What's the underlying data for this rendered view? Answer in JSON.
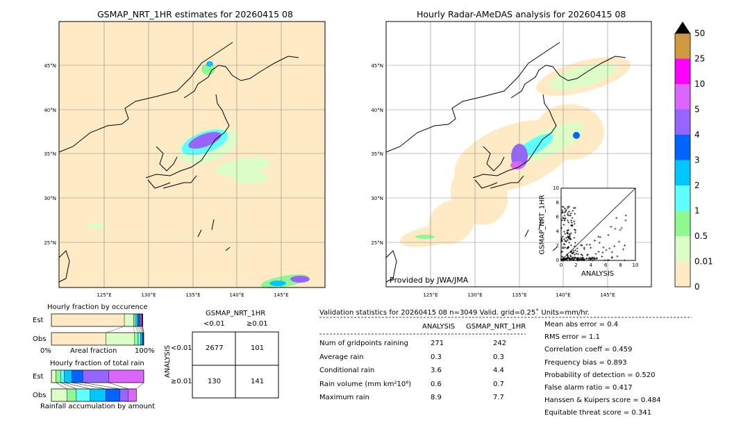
{
  "chart_data": [
    {
      "type": "map",
      "title": "GSMAP_NRT_1HR estimates for 20260415 08",
      "lon_ticks": [
        "125°E",
        "130°E",
        "135°E",
        "140°E",
        "145°E"
      ],
      "lat_ticks": [
        "45°N",
        "40°N",
        "35°N",
        "30°N",
        "25°N"
      ]
    },
    {
      "type": "map",
      "title": "Hourly Radar-AMeDAS analysis for 20260415 08",
      "lon_ticks": [
        "125°E",
        "130°E",
        "135°E",
        "140°E",
        "145°E"
      ],
      "lat_ticks": [
        "45°N",
        "40°N",
        "35°N",
        "30°N",
        "25°N"
      ],
      "credit": "Provided by JWA/JMA"
    },
    {
      "type": "scatter",
      "xlabel": "ANALYSIS",
      "ylabel": "GSMAP_NRT_1HR",
      "xlim": [
        0,
        10
      ],
      "ylim": [
        0,
        10
      ],
      "ticks": [
        "0",
        "2",
        "4",
        "6",
        "8",
        "10"
      ]
    },
    {
      "type": "colorbar",
      "labels": [
        "50",
        "25",
        "10",
        "5",
        "4",
        "3",
        "2",
        "1",
        "0.5",
        "0.01",
        "0"
      ],
      "colors": [
        "#d09a40",
        "#ff00ff",
        "#dc64ff",
        "#9664ff",
        "#0064ff",
        "#00c8ff",
        "#60ffff",
        "#90f890",
        "#dcfcc8",
        "#feeac4"
      ],
      "extend": "max"
    },
    {
      "type": "bar",
      "title": "Hourly fraction by occurence",
      "categories": [
        "Est",
        "Obs"
      ],
      "xlabel": "Areal fraction",
      "x_left": "0%",
      "x_right": "100%",
      "series": [
        {
          "fractions": [
            0.79,
            0.1,
            0.02,
            0.015,
            0.015,
            0.015,
            0.015,
            0.01,
            0.005,
            0.005
          ]
        },
        {
          "fractions": [
            0.59,
            0.31,
            0.04,
            0.025,
            0.02,
            0.01,
            0.005,
            0.0,
            0.0,
            0.0
          ]
        }
      ]
    },
    {
      "type": "bar",
      "title": "Hourly fraction of total rain",
      "categories": [
        "Est",
        "Obs"
      ],
      "xlabel": "Rainfall accumulation by amount",
      "series": [
        {
          "fractions": [
            0.05,
            0.05,
            0.04,
            0.08,
            0.12,
            0.28,
            0.38
          ]
        },
        {
          "fractions": [
            0.17,
            0.1,
            0.15,
            0.17,
            0.15,
            0.09,
            0.09
          ]
        }
      ]
    },
    {
      "type": "table",
      "title": "GSMAP_NRT_1HR",
      "col_labels": [
        "<0.01",
        "≥0.01"
      ],
      "row_axis": "ANALYSIS",
      "row_labels": [
        "<0.01",
        "≥0.01"
      ],
      "cells": [
        [
          "2677",
          "101"
        ],
        [
          "130",
          "141"
        ]
      ]
    }
  ],
  "stats": {
    "header": "Validation statistics for 20260415 08  n=3049 Valid. grid=0.25˚ Units=mm/hr.",
    "col_analysis": "ANALYSIS",
    "col_gsmap": "GSMAP_NRT_1HR",
    "rows": [
      {
        "label": "Num of gridpoints raining",
        "a": "271",
        "g": "242"
      },
      {
        "label": "Average rain",
        "a": "0.3",
        "g": "0.3"
      },
      {
        "label": "Conditional rain",
        "a": "3.6",
        "g": "4.4"
      },
      {
        "label": "Rain volume (mm km²10⁶)",
        "a": "0.6",
        "g": "0.7"
      },
      {
        "label": "Maximum rain",
        "a": "8.9",
        "g": "7.7"
      }
    ],
    "scores": [
      "Mean abs error =    0.4",
      "RMS error =    1.1",
      "Correlation coeff =  0.459",
      "Frequency bias =  0.893",
      "Probability of detection =  0.520",
      "False alarm ratio =  0.417",
      "Hanssen & Kuipers score =  0.484",
      "Equitable threat score =  0.341"
    ]
  }
}
